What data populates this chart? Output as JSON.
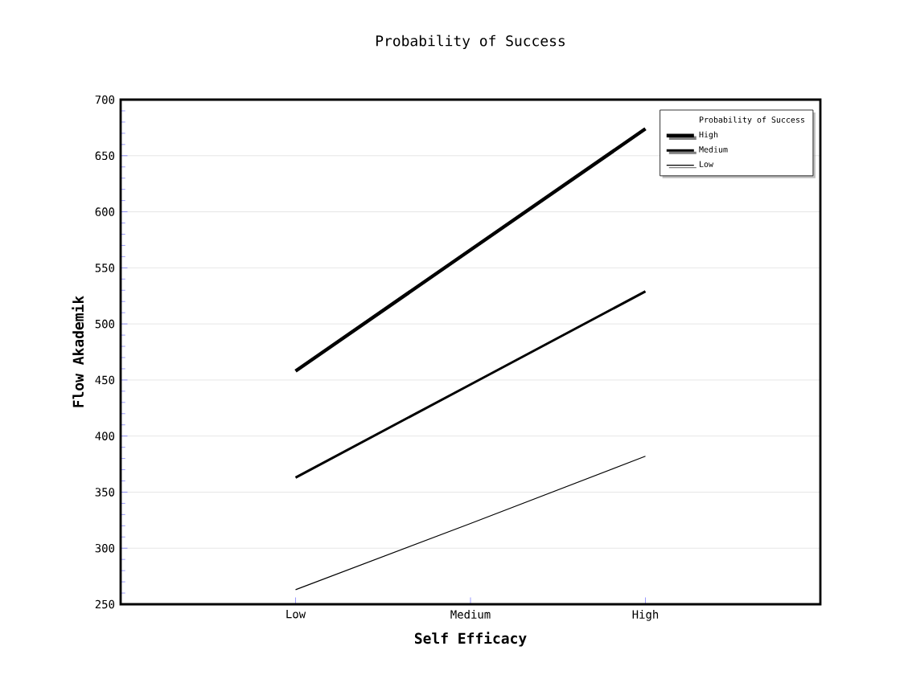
{
  "chart_data": {
    "type": "line",
    "title": "Probability of Success",
    "xlabel": "Self Efficacy",
    "ylabel": "Flow Akademik",
    "legend_title": "Probability of Success",
    "categories": [
      "Low",
      "Medium",
      "High"
    ],
    "series": [
      {
        "name": "High",
        "color": "#000000",
        "values": [
          458,
          566,
          674
        ]
      },
      {
        "name": "Medium",
        "color": "#000000",
        "values": [
          363,
          446,
          529
        ]
      },
      {
        "name": "Low",
        "color": "#000000",
        "values": [
          263,
          322,
          382
        ]
      }
    ],
    "ylim": [
      250,
      700
    ],
    "yticks": [
      250,
      300,
      350,
      400,
      450,
      500,
      550,
      600,
      650,
      700
    ],
    "grid": "y",
    "legend": "top right"
  }
}
